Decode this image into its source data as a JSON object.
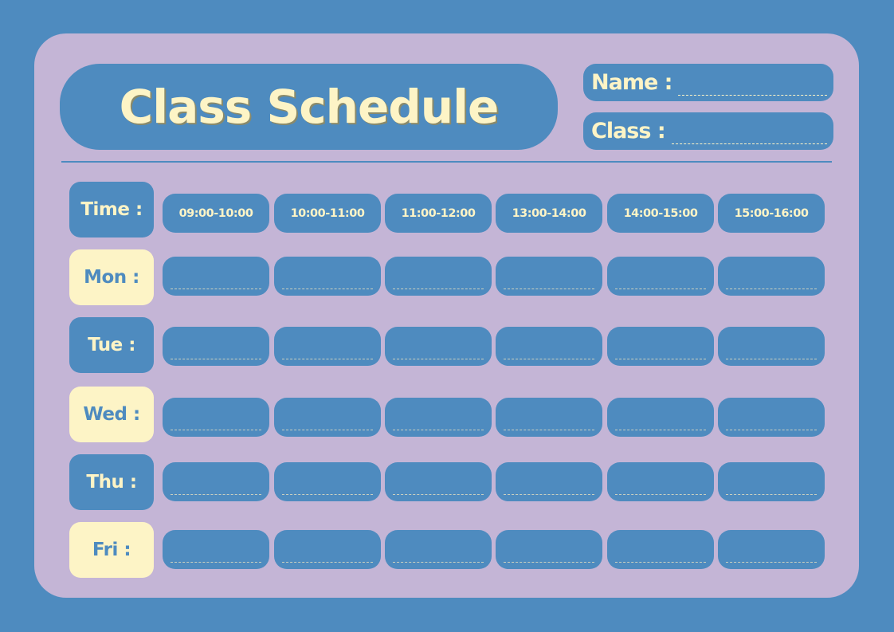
{
  "title": "Class Schedule",
  "fields": {
    "name_label": "Name :",
    "class_label": "Class :"
  },
  "time_label": "Time :",
  "times": [
    "09:00-10:00",
    "10:00-11:00",
    "11:00-12:00",
    "13:00-14:00",
    "14:00-15:00",
    "15:00-16:00"
  ],
  "days": [
    "Mon :",
    "Tue :",
    "Wed :",
    "Thu :",
    "Fri :"
  ],
  "colors": {
    "background": "#4e8bbf",
    "card": "#c4b5d6",
    "cream": "#fdf4c6"
  }
}
